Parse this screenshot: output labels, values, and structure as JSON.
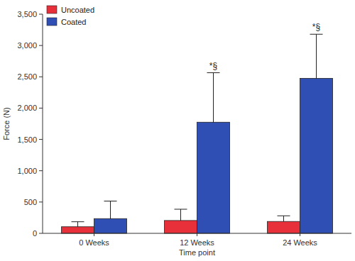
{
  "chart_data": {
    "type": "bar",
    "x_label": "Time point",
    "y_label": "Force (N)",
    "categories": [
      "0 Weeks",
      "12 Weeks",
      "24 Weeks"
    ],
    "series": [
      {
        "name": "Uncoated",
        "color": "#e8303a",
        "values": [
          105,
          205,
          190
        ],
        "errors": [
          80,
          180,
          90
        ]
      },
      {
        "name": "Coated",
        "color": "#2f4fb5",
        "values": [
          235,
          1775,
          2475
        ],
        "errors": [
          280,
          790,
          705
        ]
      }
    ],
    "ylim": [
      0,
      3500
    ],
    "yticks": [
      0,
      500,
      {
        "value": 1000,
        "label": "1,000"
      },
      {
        "value": 1500,
        "label": "1,500"
      },
      {
        "value": 2000,
        "label": "2,000"
      },
      {
        "value": 2500,
        "label": "2,500"
      },
      {
        "value": 3000,
        "label": "3,000"
      },
      {
        "value": 3500,
        "label": "3,500"
      }
    ],
    "grid": false,
    "legend": "top-left",
    "annotations": [
      {
        "label": "*§",
        "category": "12 Weeks",
        "series": "Coated"
      },
      {
        "label": "*§",
        "category": "24 Weeks",
        "series": "Coated"
      }
    ]
  }
}
